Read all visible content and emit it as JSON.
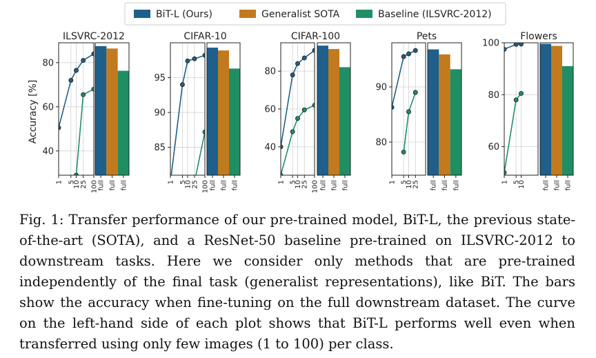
{
  "legend": [
    {
      "label": "BiT-L (Ours)",
      "color": "#1f5f8b"
    },
    {
      "label": "Generalist SOTA",
      "color": "#c27a1f"
    },
    {
      "label": "Baseline (ILSVRC-2012)",
      "color": "#1f8f63"
    }
  ],
  "ylabel": "Accuracy [%]",
  "colors": {
    "bit": "#1f5f8b",
    "sota": "#c27a1f",
    "base": "#1f8f63",
    "grid": "#d0d0d0"
  },
  "chart_data": [
    {
      "type": "line+bar",
      "title": "ILSVRC-2012",
      "ylabel": "Accuracy [%]",
      "ylim": [
        29,
        89
      ],
      "yticks": [
        40,
        60,
        80
      ],
      "x_ticks": [
        "1",
        "5",
        "10",
        "25",
        "100"
      ],
      "x": [
        1,
        5,
        10,
        25,
        100
      ],
      "series": [
        {
          "name": "BiT-L (Ours)",
          "values": [
            50.5,
            72.0,
            76.5,
            81.0,
            84.0
          ]
        },
        {
          "name": "Baseline (ILSVRC-2012)",
          "values": [
            null,
            23.5,
            29.0,
            65.5,
            68.0
          ]
        }
      ],
      "bar_categories": [
        "full",
        "full",
        "full"
      ],
      "bars": [
        {
          "name": "BiT-L (Ours)",
          "value": 87.5
        },
        {
          "name": "Generalist SOTA",
          "value": 86.4
        },
        {
          "name": "Baseline (ILSVRC-2012)",
          "value": 76.3
        }
      ]
    },
    {
      "type": "line+bar",
      "title": "CIFAR-10",
      "ylabel": "",
      "ylim": [
        81,
        100
      ],
      "yticks": [
        85,
        90,
        95
      ],
      "x_ticks": [
        "1",
        "5",
        "10",
        "25",
        "100"
      ],
      "x": [
        1,
        5,
        10,
        25,
        100
      ],
      "series": [
        {
          "name": "BiT-L (Ours)",
          "values": [
            80.0,
            94.0,
            97.4,
            97.7,
            98.2
          ]
        },
        {
          "name": "Baseline (ILSVRC-2012)",
          "values": [
            null,
            null,
            null,
            80.0,
            87.2
          ]
        }
      ],
      "bar_categories": [
        "full",
        "full",
        "full"
      ],
      "bars": [
        {
          "name": "BiT-L (Ours)",
          "value": 99.3
        },
        {
          "name": "Generalist SOTA",
          "value": 98.9
        },
        {
          "name": "Baseline (ILSVRC-2012)",
          "value": 96.3
        }
      ]
    },
    {
      "type": "line+bar",
      "title": "CIFAR-100",
      "ylabel": "",
      "ylim": [
        25,
        95
      ],
      "yticks": [
        40,
        60,
        80
      ],
      "x_ticks": [
        "1",
        "5",
        "10",
        "25",
        "100"
      ],
      "x": [
        1,
        5,
        10,
        25,
        100
      ],
      "series": [
        {
          "name": "BiT-L (Ours)",
          "values": [
            40.0,
            78.0,
            84.0,
            87.0,
            91.0
          ]
        },
        {
          "name": "Baseline (ILSVRC-2012)",
          "values": [
            25.0,
            48.0,
            55.0,
            59.5,
            62.0
          ]
        }
      ],
      "bar_categories": [
        "full",
        "full",
        "full"
      ],
      "bars": [
        {
          "name": "BiT-L (Ours)",
          "value": 93.5
        },
        {
          "name": "Generalist SOTA",
          "value": 91.7
        },
        {
          "name": "Baseline (ILSVRC-2012)",
          "value": 82.1
        }
      ]
    },
    {
      "type": "line+bar",
      "title": "Pets",
      "ylabel": "",
      "ylim": [
        74,
        98
      ],
      "yticks": [
        80,
        90
      ],
      "x_ticks": [
        "1",
        "5",
        "10",
        "25"
      ],
      "x": [
        1,
        5,
        10,
        25
      ],
      "series": [
        {
          "name": "BiT-L (Ours)",
          "values": [
            86.3,
            95.5,
            96.0,
            96.6
          ]
        },
        {
          "name": "Baseline (ILSVRC-2012)",
          "values": [
            null,
            78.2,
            85.5,
            89.0
          ]
        }
      ],
      "bar_categories": [
        "full",
        "full",
        "full"
      ],
      "bars": [
        {
          "name": "BiT-L (Ours)",
          "value": 96.8
        },
        {
          "name": "Generalist SOTA",
          "value": 95.9
        },
        {
          "name": "Baseline (ILSVRC-2012)",
          "value": 93.2
        }
      ]
    },
    {
      "type": "line+bar",
      "title": "Flowers",
      "ylabel": "",
      "ylim": [
        49,
        100
      ],
      "yticks": [
        60,
        80,
        100
      ],
      "x_ticks": [
        "1",
        "5",
        "10"
      ],
      "x": [
        1,
        5,
        10
      ],
      "series": [
        {
          "name": "BiT-L (Ours)",
          "values": [
            97.5,
            99.4,
            99.5
          ]
        },
        {
          "name": "Baseline (ILSVRC-2012)",
          "values": [
            50.0,
            78.0,
            80.5
          ]
        }
      ],
      "bar_categories": [
        "full",
        "full",
        "full"
      ],
      "bars": [
        {
          "name": "BiT-L (Ours)",
          "value": 99.6
        },
        {
          "name": "Generalist SOTA",
          "value": 98.8
        },
        {
          "name": "Baseline (ILSVRC-2012)",
          "value": 91.0
        }
      ]
    }
  ],
  "caption": "Fig. 1: Transfer performance of our pre-trained model, BiT-L, the previous state-of-the-art (SOTA), and a ResNet-50 baseline pre-trained on ILSVRC-2012 to downstream tasks. Here we consider only methods that are pre-trained independently of the final task (generalist representations), like BiT. The bars show the accuracy when fine-tuning on the full downstream dataset. The curve on the left-hand side of each plot shows that BiT-L performs well even when transferred using only few images (1 to 100) per class."
}
